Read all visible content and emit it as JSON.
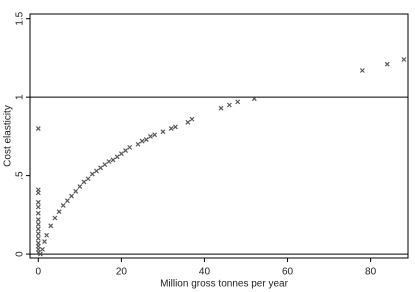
{
  "chart_data": {
    "type": "scatter",
    "x_label": "Million gross tonnes per year",
    "y_label": "Cost elasticity",
    "color": "#555555",
    "xlim": [
      -2,
      89
    ],
    "xticks": [
      0,
      20,
      40,
      60,
      80
    ],
    "ylim": [
      -0.025,
      1.53
    ],
    "yticks": [
      0,
      {
        "value": 0.5,
        "label": ".5"
      },
      1,
      1.5
    ],
    "hlines": [
      0,
      1
    ],
    "x": [
      0,
      0,
      0,
      0,
      0,
      0,
      0,
      0,
      0,
      0,
      0,
      0,
      0,
      0,
      0,
      0.5,
      1,
      1.5,
      2,
      3,
      4,
      5,
      6,
      7,
      8,
      9,
      10,
      11,
      12,
      13,
      14,
      15,
      16,
      17,
      18,
      19,
      20,
      21,
      22,
      24,
      25,
      26,
      27,
      28,
      30,
      32,
      33,
      36,
      37,
      44,
      46,
      48,
      52,
      78,
      84,
      88
    ],
    "y": [
      0.8,
      0.41,
      0.39,
      0.33,
      0.3,
      0.26,
      0.22,
      0.19,
      0.16,
      0.13,
      0.1,
      0.07,
      0.05,
      0.03,
      0.01,
      0,
      0.03,
      0.08,
      0.12,
      0.18,
      0.23,
      0.27,
      0.31,
      0.34,
      0.37,
      0.4,
      0.43,
      0.46,
      0.48,
      0.51,
      0.53,
      0.55,
      0.57,
      0.59,
      0.6,
      0.62,
      0.64,
      0.66,
      0.68,
      0.7,
      0.72,
      0.73,
      0.75,
      0.76,
      0.78,
      0.8,
      0.81,
      0.84,
      0.86,
      0.93,
      0.95,
      0.97,
      0.99,
      1.17,
      1.21,
      1.24
    ]
  }
}
